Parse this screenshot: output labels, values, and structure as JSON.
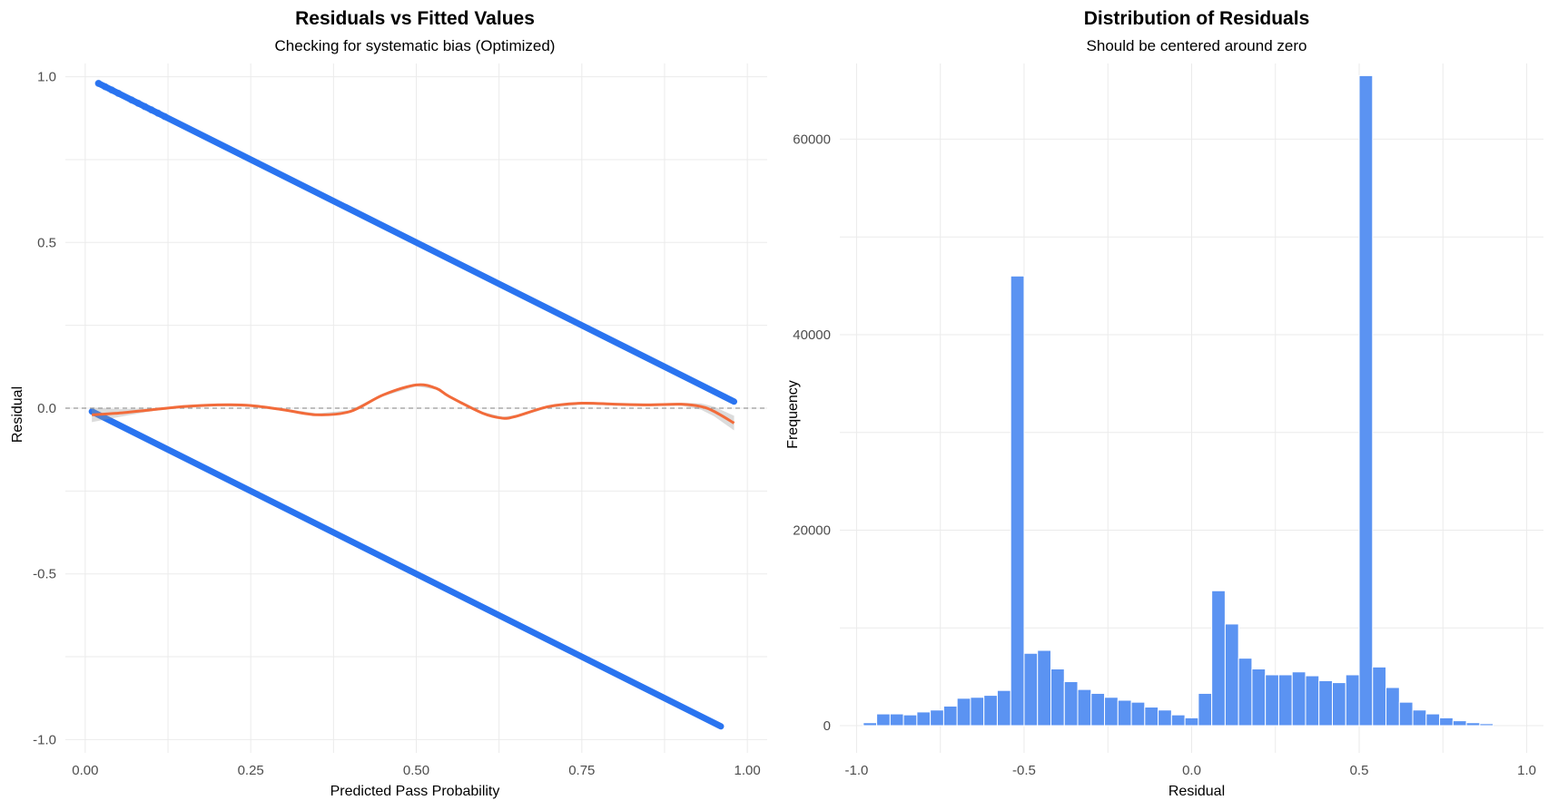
{
  "chart_data": [
    {
      "type": "scatter",
      "title": "Residuals vs Fitted Values",
      "subtitle": "Checking for systematic bias (Optimized)",
      "xlabel": "Predicted Pass Probability",
      "ylabel": "Residual",
      "xlim": [
        -0.03,
        1.03
      ],
      "ylim": [
        -1.04,
        1.04
      ],
      "xticks": [
        0.0,
        0.25,
        0.5,
        0.75,
        1.0
      ],
      "xtick_labels": [
        "0.00",
        "0.25",
        "0.50",
        "0.75",
        "1.00"
      ],
      "yticks": [
        -1.0,
        -0.5,
        0.0,
        0.5,
        1.0
      ],
      "ytick_labels": [
        "-1.0",
        "-0.5",
        "0.0",
        "0.5",
        "1.0"
      ],
      "grid": true,
      "point_color": "#2A74F0",
      "reference_line": {
        "y": 0,
        "style": "dashed",
        "color": "#999999"
      },
      "series": [
        {
          "role": "residuals-actual-1",
          "x_range": [
            0.02,
            0.98
          ],
          "relation": "residual = 1 - x"
        },
        {
          "role": "residuals-actual-0",
          "x_range": [
            0.01,
            0.96
          ],
          "relation": "residual = -x"
        },
        {
          "role": "smooth",
          "color": "#F26B3A",
          "x": [
            0.01,
            0.05,
            0.1,
            0.15,
            0.2,
            0.25,
            0.3,
            0.35,
            0.4,
            0.45,
            0.5,
            0.53,
            0.55,
            0.6,
            0.63,
            0.65,
            0.7,
            0.75,
            0.8,
            0.85,
            0.9,
            0.93,
            0.95,
            0.98
          ],
          "y": [
            -0.02,
            -0.015,
            -0.005,
            0.005,
            0.01,
            0.008,
            -0.005,
            -0.02,
            -0.01,
            0.04,
            0.07,
            0.06,
            0.035,
            -0.015,
            -0.03,
            -0.025,
            0.005,
            0.015,
            0.012,
            0.01,
            0.012,
            0.005,
            -0.01,
            -0.045
          ]
        }
      ]
    },
    {
      "type": "bar",
      "title": "Distribution of Residuals",
      "subtitle": "Should be centered around zero",
      "xlabel": "Residual",
      "ylabel": "Frequency",
      "xlim": [
        -1.05,
        1.05
      ],
      "ylim": [
        0,
        67000
      ],
      "xticks": [
        -1.0,
        -0.5,
        0.0,
        0.5,
        1.0
      ],
      "xtick_labels": [
        "-1.0",
        "-0.5",
        "0.0",
        "0.5",
        "1.0"
      ],
      "yticks": [
        0,
        20000,
        40000,
        60000
      ],
      "ytick_labels": [
        "0",
        "20000",
        "40000",
        "60000"
      ],
      "grid": true,
      "bar_color": "#5B93F2",
      "bin_width": 0.04,
      "bin_centers": [
        -0.96,
        -0.92,
        -0.88,
        -0.84,
        -0.8,
        -0.76,
        -0.72,
        -0.68,
        -0.64,
        -0.6,
        -0.56,
        -0.52,
        -0.48,
        -0.44,
        -0.4,
        -0.36,
        -0.32,
        -0.28,
        -0.24,
        -0.2,
        -0.16,
        -0.12,
        -0.08,
        -0.04,
        0.0,
        0.04,
        0.08,
        0.12,
        0.16,
        0.2,
        0.24,
        0.28,
        0.32,
        0.36,
        0.4,
        0.44,
        0.48,
        0.52,
        0.56,
        0.6,
        0.64,
        0.68,
        0.72,
        0.76,
        0.8,
        0.84,
        0.88
      ],
      "values": [
        300,
        1200,
        1200,
        1100,
        1400,
        1600,
        2000,
        2800,
        2900,
        3100,
        3600,
        46000,
        7400,
        7700,
        5800,
        4500,
        3700,
        3300,
        2900,
        2600,
        2400,
        1900,
        1600,
        1100,
        800,
        3300,
        13800,
        10400,
        6900,
        5800,
        5200,
        5200,
        5500,
        5100,
        4600,
        4400,
        5200,
        66500,
        6000,
        3900,
        2400,
        1600,
        1200,
        800,
        500,
        300,
        200
      ]
    }
  ]
}
